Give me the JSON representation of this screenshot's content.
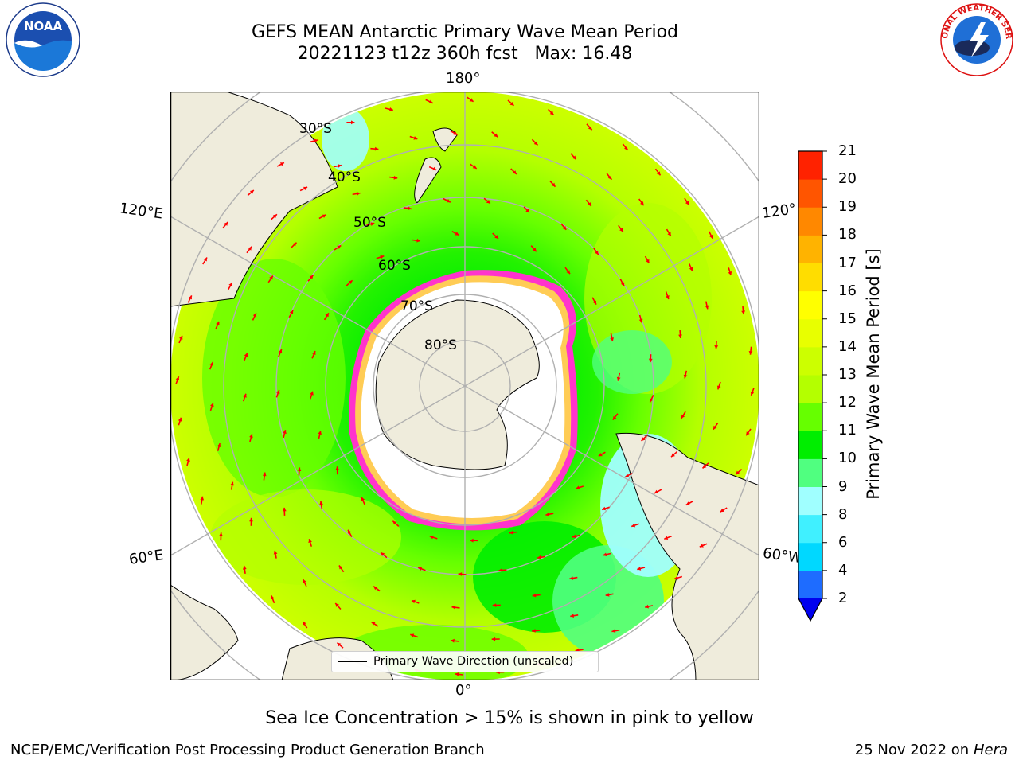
{
  "header": {
    "title_line1": "GEFS MEAN Antarctic Primary Wave Mean Period",
    "title_line2": "20221123 t12z 360h fcst   Max: 16.48"
  },
  "logos": {
    "left": "NOAA",
    "right": "NATIONAL WEATHER SERVICE"
  },
  "map": {
    "projection": "south-polar-stereographic",
    "longitude_labels": [
      "180°",
      "120°E",
      "120°",
      "60°E",
      "60°W",
      "0°"
    ],
    "latitude_labels": [
      "30°S",
      "40°S",
      "50°S",
      "60°S",
      "70°S",
      "80°S"
    ],
    "colors": {
      "land": "#efecdc",
      "sea_ice": "#ffffff",
      "ice_edge_pink": "#ff33cc",
      "ice_edge_yellow": "#ffcc55",
      "arrow": "#ff0000"
    }
  },
  "legend": {
    "label": "Primary Wave Direction (unscaled)"
  },
  "colorbar": {
    "label": "Primary Wave Mean Period [s]",
    "ticks": [
      "2",
      "4",
      "6",
      "8",
      "9",
      "10",
      "11",
      "12",
      "13",
      "14",
      "15",
      "16",
      "17",
      "18",
      "19",
      "20",
      "21"
    ],
    "colors": [
      "#1e6cff",
      "#00d8ff",
      "#40f0ff",
      "#a0ffff",
      "#50ff80",
      "#00ee00",
      "#66ff00",
      "#b4ff00",
      "#ccff00",
      "#e8ff00",
      "#ffff00",
      "#ffdd00",
      "#ffb300",
      "#ff8800",
      "#ff5500",
      "#ff2200"
    ],
    "under_color": "#0000ee"
  },
  "footer": {
    "subtitle": "Sea Ice Concentration > 15% is shown in pink to yellow",
    "credit": "NCEP/EMC/Verification Post Processing Product Generation Branch",
    "date": "25 Nov 2022 on",
    "machine": "Hera"
  }
}
